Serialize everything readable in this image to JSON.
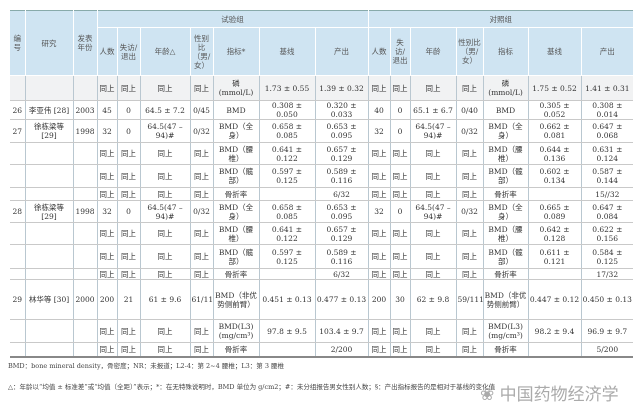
{
  "header": {
    "no": "编号",
    "study": "研究",
    "year": "发表年份",
    "trial_group": "试验组",
    "control_group": "对照组",
    "trial_cols": [
      "人数",
      "失访/退出",
      "年龄△",
      "性别比（男/女）",
      "指标*",
      "基线",
      "产出"
    ],
    "control_cols": [
      "人数",
      "失访/退出",
      "年龄",
      "性别比（男/女）",
      "指标",
      "基线",
      "产出"
    ]
  },
  "rows": [
    [
      "",
      "",
      "",
      "同上",
      "同上",
      "同上",
      "同上",
      "磷 (mmol/L)",
      "1.73 ± 0.55",
      "1.39 ± 0.32",
      "同上",
      "同上",
      "同上",
      "同上",
      "磷 (mmol/L)",
      "1.75 ± 0.52",
      "1.41 ± 0.31"
    ],
    [
      "26",
      "李亚伟 [28]",
      "2003",
      "45",
      "0",
      "64.5 ± 7.2",
      "0/45",
      "BMD",
      "0.308 ± 0.050",
      "0.320 ± 0.033",
      "40",
      "0",
      "65.1 ± 6.7",
      "0/40",
      "BMD",
      "0.305 ± 0.052",
      "0.308 ± 0.014"
    ],
    [
      "27",
      "徐栋梁等 [29]",
      "1998",
      "32",
      "0",
      "64.5(47 – 94)#",
      "0/32",
      "BMD（全身）",
      "0.658 ± 0.085",
      "0.653 ± 0.095",
      "32",
      "0",
      "64.5(47 – 94)#",
      "0/32",
      "BMD（全身）",
      "0.662 ± 0.081",
      "0.647 ± 0.068"
    ],
    [
      "",
      "",
      "",
      "同上",
      "同上",
      "同上",
      "同上",
      "BMD（腰椎）",
      "0.641 ± 0.122",
      "0.657 ± 0.129",
      "同上",
      "同上",
      "同上",
      "同上",
      "BMD（腰椎）",
      "0.644 ± 0.136",
      "0.631 ± 0.124"
    ],
    [
      "",
      "",
      "",
      "同上",
      "同上",
      "同上",
      "同上",
      "BMD（髋部）",
      "0.597 ± 0.125",
      "0.589 ± 0.116",
      "同上",
      "同上",
      "同上",
      "同上",
      "BMD（髋部）",
      "0.602 ± 0.134",
      "0.587 ± 0.144"
    ],
    [
      "",
      "",
      "",
      "同上",
      "同上",
      "同上",
      "同上",
      "骨折率",
      "",
      "6/32",
      "同上",
      "同上",
      "同上",
      "同上",
      "骨折率",
      "",
      "15//32"
    ],
    [
      "28",
      "徐栋梁等 [29]",
      "1998",
      "32",
      "0",
      "64.5(47 – 94)#",
      "0/32",
      "BMD（全身）",
      "0.658 ± 0.085",
      "0.653 ± 0.095",
      "32",
      "0",
      "64.5(47 – 94)#",
      "0/32",
      "BMD（全身）",
      "0.665 ± 0.089",
      "0.647 ± 0.084"
    ],
    [
      "",
      "",
      "",
      "同上",
      "同上",
      "同上",
      "同上",
      "BMD（腰椎）",
      "0.641 ± 0.122",
      "0.657 ± 0.129",
      "同上",
      "同上",
      "同上",
      "同上",
      "BMD（腰椎）",
      "0.642 ± 0.128",
      "0.622 ± 0.156"
    ],
    [
      "",
      "",
      "",
      "同上",
      "同上",
      "同上",
      "同上",
      "BMD（髋部）",
      "0.597 ± 0.125",
      "0.589 ± 0.116",
      "同上",
      "同上",
      "同上",
      "同上",
      "BMD（髋部）",
      "0.611 ± 0.121",
      "0.584 ± 0.125"
    ],
    [
      "",
      "",
      "",
      "同上",
      "同上",
      "同上",
      "同上",
      "骨折率",
      "",
      "6/32",
      "同上",
      "同上",
      "同上",
      "同上",
      "骨折率",
      "",
      "17/32"
    ],
    [
      "29",
      "林华等 [30]",
      "2000",
      "200",
      "21",
      "61 ± 9.6",
      "61/118",
      "BMD（非优势侧前臂）",
      "0.451 ± 0.13",
      "0.477 ± 0.13",
      "200",
      "30",
      "62 ± 9.8",
      "59/111",
      "BMD（非优势侧前臂）",
      "0.447 ± 0.12",
      "0.450 ± 0.13"
    ],
    [
      "",
      "",
      "",
      "同上",
      "同上",
      "同上",
      "同上",
      "BMD(L3) (mg/cm³)",
      "97.8 ± 9.5",
      "103.4 ± 9.7",
      "同上",
      "同上",
      "同上",
      "同上",
      "BMD(L3) (mg/cm³)",
      "98.2 ± 9.4",
      "96.9 ± 9.7"
    ],
    [
      "",
      "",
      "",
      "同上",
      "同上",
      "同上",
      "同上",
      "骨折率",
      "",
      "2/200",
      "同上",
      "同上",
      "同上",
      "同上",
      "骨折率",
      "",
      "5/200"
    ]
  ],
  "footnotes": [
    "BMD：bone mineral density，骨密度；NR：未报道；L2-4：第 2~4 腰椎；L3：第 3 腰椎",
    "△：年龄以“均值 ± 标准差”或“均值（全距）”表示；*：在无特殊说明时，BMD 单位为 g/cm2；#：未分组报告男女性别人数；§：产出指标报告的是相对于基线的变化值"
  ],
  "watermark": "中国药物经济学",
  "colors": {
    "header_bg": "#cfe4f2",
    "first_row_bg": "#f1f2f3"
  }
}
